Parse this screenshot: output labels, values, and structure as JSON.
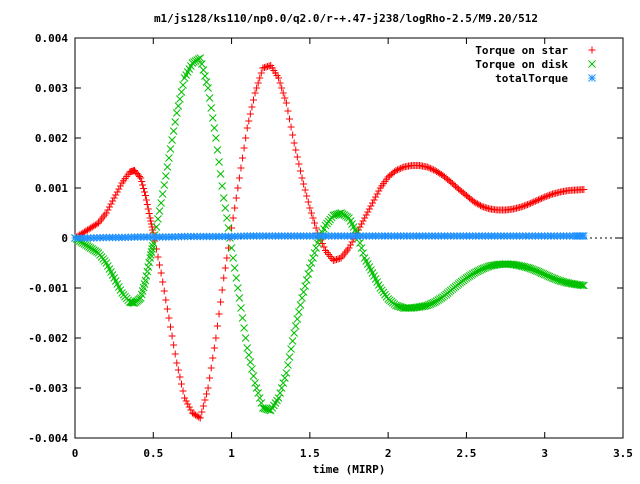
{
  "chart_data": {
    "type": "scatter",
    "title": "m1/js128/ks110/np0.0/q2.0/r-+.47-j238/logRho-2.5/M9.20/512",
    "xlabel": "time (MIRP)",
    "ylabel": "",
    "xlim": [
      0,
      3.5
    ],
    "ylim": [
      -0.004,
      0.004
    ],
    "x_ticks": [
      0,
      0.5,
      1,
      1.5,
      2,
      2.5,
      3,
      3.5
    ],
    "x_tick_labels": [
      "0",
      "0.5",
      "1",
      "1.5",
      "2",
      "2.5",
      "3",
      "3.5"
    ],
    "y_ticks": [
      -0.004,
      -0.003,
      -0.002,
      -0.001,
      0,
      0.001,
      0.002,
      0.003,
      0.004
    ],
    "y_tick_labels": [
      "-0.004",
      "-0.003",
      "-0.002",
      "-0.001",
      "0",
      "0.001",
      "0.002",
      "0.003",
      "0.004"
    ],
    "grid": false,
    "legend_position": "top-right",
    "series": [
      {
        "name": "Torque on star",
        "marker": "plus",
        "color": "#ff0000",
        "x": [
          0.0,
          0.05,
          0.1,
          0.15,
          0.2,
          0.25,
          0.3,
          0.35,
          0.38,
          0.42,
          0.45,
          0.48,
          0.5,
          0.55,
          0.6,
          0.65,
          0.7,
          0.75,
          0.8,
          0.85,
          0.9,
          0.95,
          1.0,
          1.05,
          1.1,
          1.15,
          1.2,
          1.25,
          1.3,
          1.35,
          1.4,
          1.45,
          1.5,
          1.55,
          1.6,
          1.65,
          1.7,
          1.75,
          1.8,
          1.85,
          1.9,
          1.95,
          2.0,
          2.05,
          2.1,
          2.15,
          2.2,
          2.25,
          2.3,
          2.35,
          2.4,
          2.45,
          2.5,
          2.55,
          2.6,
          2.65,
          2.7,
          2.75,
          2.8,
          2.85,
          2.9,
          2.95,
          3.0,
          3.05,
          3.1,
          3.15,
          3.2,
          3.25
        ],
        "y": [
          0.0,
          0.0001,
          0.0002,
          0.0003,
          0.0005,
          0.0008,
          0.0011,
          0.00132,
          0.00135,
          0.0012,
          0.00085,
          0.0004,
          0.0001,
          -0.0007,
          -0.0016,
          -0.0025,
          -0.0032,
          -0.0035,
          -0.0036,
          -0.003,
          -0.002,
          -0.0008,
          0.0002,
          0.0012,
          0.0022,
          0.0029,
          0.0034,
          0.00345,
          0.0032,
          0.0027,
          0.0019,
          0.0012,
          0.0006,
          0.0001,
          -0.00025,
          -0.00045,
          -0.0004,
          -0.0002,
          0.0001,
          0.0004,
          0.0007,
          0.001,
          0.00122,
          0.00135,
          0.00142,
          0.00145,
          0.00145,
          0.00142,
          0.00135,
          0.00125,
          0.00112,
          0.00098,
          0.00085,
          0.00072,
          0.00063,
          0.00058,
          0.00056,
          0.00056,
          0.00058,
          0.00062,
          0.00068,
          0.00075,
          0.00082,
          0.00088,
          0.00092,
          0.00095,
          0.00096,
          0.00097
        ]
      },
      {
        "name": "Torque on disk",
        "marker": "cross",
        "color": "#00c000",
        "x": [
          0.0,
          0.05,
          0.1,
          0.15,
          0.2,
          0.25,
          0.3,
          0.35,
          0.38,
          0.42,
          0.45,
          0.48,
          0.5,
          0.55,
          0.6,
          0.65,
          0.7,
          0.75,
          0.8,
          0.85,
          0.9,
          0.95,
          1.0,
          1.05,
          1.1,
          1.15,
          1.2,
          1.25,
          1.3,
          1.35,
          1.4,
          1.45,
          1.5,
          1.55,
          1.6,
          1.65,
          1.7,
          1.75,
          1.8,
          1.85,
          1.9,
          1.95,
          2.0,
          2.05,
          2.1,
          2.15,
          2.2,
          2.25,
          2.3,
          2.35,
          2.4,
          2.45,
          2.5,
          2.55,
          2.6,
          2.65,
          2.7,
          2.75,
          2.8,
          2.85,
          2.9,
          2.95,
          3.0,
          3.05,
          3.1,
          3.15,
          3.2,
          3.25
        ],
        "y": [
          0.0,
          -0.0001,
          -0.0002,
          -0.0003,
          -0.0005,
          -0.0008,
          -0.0011,
          -0.00128,
          -0.0013,
          -0.0012,
          -0.00085,
          -0.0004,
          -0.0001,
          0.0007,
          0.0016,
          0.0025,
          0.0032,
          0.0035,
          0.0036,
          0.003,
          0.002,
          0.0008,
          -0.0002,
          -0.0012,
          -0.0022,
          -0.0029,
          -0.0034,
          -0.00345,
          -0.0032,
          -0.0027,
          -0.0019,
          -0.0012,
          -0.0006,
          -0.0001,
          0.00025,
          0.00045,
          0.0005,
          0.0004,
          0.0001,
          -0.0004,
          -0.0007,
          -0.001,
          -0.00122,
          -0.00135,
          -0.0014,
          -0.0014,
          -0.00138,
          -0.00135,
          -0.00128,
          -0.00118,
          -0.00105,
          -0.00092,
          -0.0008,
          -0.0007,
          -0.00062,
          -0.00056,
          -0.00053,
          -0.00052,
          -0.00053,
          -0.00056,
          -0.0006,
          -0.00066,
          -0.00073,
          -0.0008,
          -0.00086,
          -0.0009,
          -0.00093,
          -0.00095
        ]
      },
      {
        "name": "totalTorque",
        "marker": "star",
        "color": "#1e90ff",
        "x": [
          0.0,
          0.1,
          0.2,
          0.3,
          0.4,
          0.5,
          0.6,
          0.7,
          0.8,
          0.9,
          1.0,
          1.1,
          1.2,
          1.3,
          1.4,
          1.5,
          1.6,
          1.7,
          1.8,
          1.9,
          2.0,
          2.1,
          2.2,
          2.3,
          2.4,
          2.5,
          2.6,
          2.7,
          2.8,
          2.9,
          3.0,
          3.1,
          3.2,
          3.25
        ],
        "y": [
          0.0,
          0.0,
          1e-05,
          1e-05,
          2e-05,
          2e-05,
          2e-05,
          3e-05,
          3e-05,
          3e-05,
          3e-05,
          4e-05,
          4e-05,
          4e-05,
          4e-05,
          4e-05,
          4e-05,
          4e-05,
          4e-05,
          4e-05,
          4e-05,
          4e-05,
          4e-05,
          4e-05,
          4e-05,
          4e-05,
          4e-05,
          4e-05,
          4e-05,
          4e-05,
          4e-05,
          4e-05,
          4e-05,
          4e-05
        ]
      }
    ]
  }
}
